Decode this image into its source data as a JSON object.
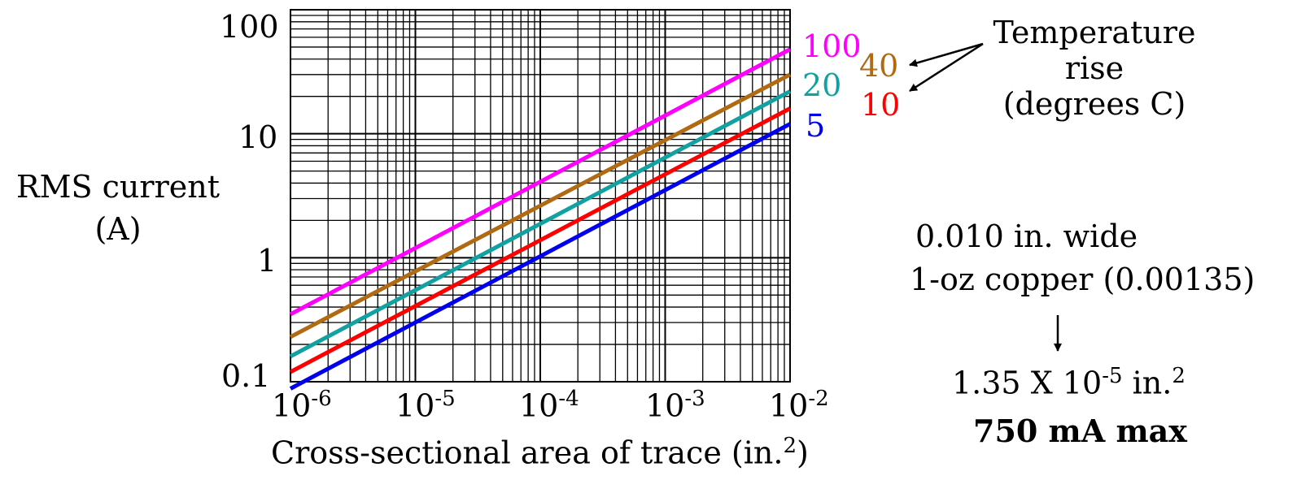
{
  "chart_data": {
    "type": "line",
    "x_scale": "log",
    "y_scale": "log",
    "xlim": [
      1e-06,
      0.01
    ],
    "ylim": [
      0.1,
      100
    ],
    "grid": true,
    "xticks": [
      {
        "base": "10",
        "exp": "-6"
      },
      {
        "base": "10",
        "exp": "-5"
      },
      {
        "base": "10",
        "exp": "-4"
      },
      {
        "base": "10",
        "exp": "-3"
      },
      {
        "base": "10",
        "exp": "-2"
      }
    ],
    "yticks": [
      "0.1",
      "1",
      "10",
      "100"
    ],
    "ylabel": [
      "RMS current",
      "(A)"
    ],
    "xlabel": {
      "main": "Cross-sectional area of trace (in.",
      "sup": "2",
      "end": ")"
    },
    "series": [
      {
        "name": "100",
        "color": "#ff00ff",
        "x": [
          1e-06,
          0.01
        ],
        "y": [
          0.35,
          48
        ]
      },
      {
        "name": "40",
        "color": "#b06a12",
        "x": [
          1e-06,
          0.01
        ],
        "y": [
          0.23,
          30
        ]
      },
      {
        "name": "20",
        "color": "#12a0a0",
        "x": [
          1e-06,
          0.01
        ],
        "y": [
          0.16,
          22
        ]
      },
      {
        "name": "10",
        "color": "#ff0000",
        "x": [
          1e-06,
          0.01
        ],
        "y": [
          0.12,
          16
        ]
      },
      {
        "name": "5",
        "color": "#0000ee",
        "x": [
          1e-06,
          0.01
        ],
        "y": [
          0.088,
          12
        ]
      }
    ]
  },
  "legend": {
    "title": [
      "Temperature",
      "rise",
      "(degrees C)"
    ]
  },
  "annotation": {
    "line1": "0.010 in. wide",
    "line2": "1-oz copper (0.00135)",
    "result_prefix": "1.35 X 10",
    "result_exp": "-5",
    "result_unit": " in.",
    "result_unit_exp": "2",
    "max": "750 mA max"
  }
}
